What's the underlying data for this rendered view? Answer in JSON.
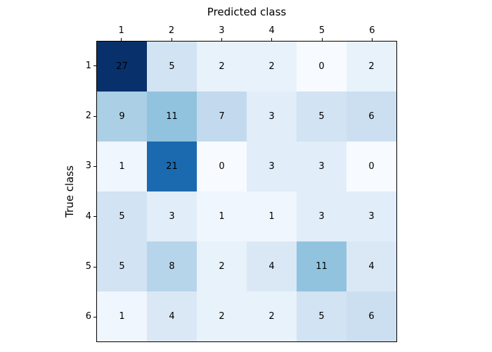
{
  "chart_data": {
    "type": "heatmap",
    "title": "",
    "xlabel": "Predicted class",
    "ylabel": "True class",
    "x_tick_labels": [
      "1",
      "2",
      "3",
      "4",
      "5",
      "6"
    ],
    "y_tick_labels": [
      "1",
      "2",
      "3",
      "4",
      "5",
      "6"
    ],
    "matrix": [
      [
        27,
        5,
        2,
        2,
        0,
        2
      ],
      [
        9,
        11,
        7,
        3,
        5,
        6
      ],
      [
        1,
        21,
        0,
        3,
        3,
        0
      ],
      [
        5,
        3,
        1,
        1,
        3,
        3
      ],
      [
        5,
        8,
        2,
        4,
        11,
        4
      ],
      [
        1,
        4,
        2,
        2,
        5,
        6
      ]
    ],
    "vmin": 0,
    "vmax": 27,
    "colormap": "Blues",
    "annotation_color": "#000000",
    "frame_color": "#000000",
    "background_color": "#ffffff",
    "xaxis_position": "top",
    "grid": false,
    "legend": "none"
  }
}
